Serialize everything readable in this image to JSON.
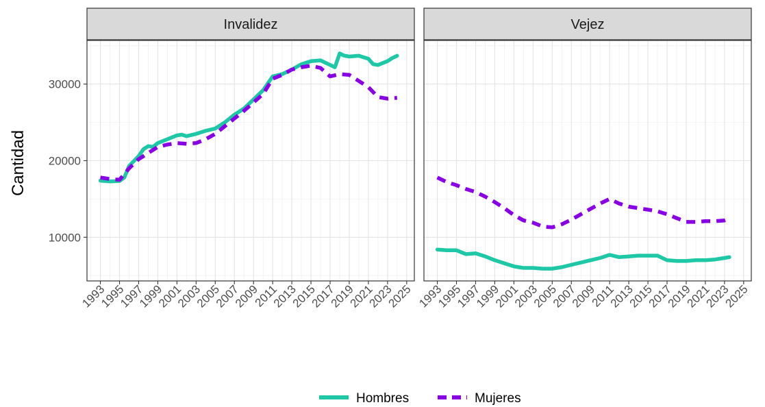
{
  "chart_data": {
    "type": "line",
    "ylabel": "Cantidad",
    "xlabel": "",
    "title": "",
    "ylim": [
      4300,
      35700
    ],
    "xlim": [
      1991.6,
      2025.8
    ],
    "y_ticks": [
      10000,
      20000,
      30000
    ],
    "y_tick_labels": [
      "10000",
      "20000",
      "30000"
    ],
    "x_ticks": [
      1993,
      1995,
      1997,
      1999,
      2001,
      2003,
      2005,
      2007,
      2009,
      2011,
      2013,
      2015,
      2017,
      2019,
      2021,
      2023,
      2025
    ],
    "x_tick_labels": [
      "1993",
      "1995",
      "1997",
      "1999",
      "2001",
      "2003",
      "2005",
      "2007",
      "2009",
      "2011",
      "2013",
      "2015",
      "2017",
      "2019",
      "2021",
      "2023",
      "2025"
    ],
    "grid": true,
    "legend_position": "bottom",
    "legend": [
      "Hombres",
      "Mujeres"
    ],
    "colors": {
      "Hombres": "#1ec8a6",
      "Mujeres": "#8a00e6"
    },
    "line_styles": {
      "Hombres": "solid",
      "Mujeres": "dashed"
    },
    "panels": [
      {
        "label": "Invalidez",
        "series": [
          {
            "name": "Hombres",
            "points": [
              [
                1993,
                17400
              ],
              [
                1994,
                17300
              ],
              [
                1995,
                17350
              ],
              [
                1995.5,
                17800
              ],
              [
                1996,
                19300
              ],
              [
                1997,
                20600
              ],
              [
                1997.5,
                21500
              ],
              [
                1998,
                21900
              ],
              [
                1998.5,
                21800
              ],
              [
                1999,
                22300
              ],
              [
                2000,
                22800
              ],
              [
                2001,
                23300
              ],
              [
                2001.5,
                23400
              ],
              [
                2002,
                23200
              ],
              [
                2003,
                23500
              ],
              [
                2004,
                23900
              ],
              [
                2005,
                24200
              ],
              [
                2006,
                25000
              ],
              [
                2007,
                26000
              ],
              [
                2008,
                26800
              ],
              [
                2009,
                28000
              ],
              [
                2010,
                29200
              ],
              [
                2011,
                31000
              ],
              [
                2012,
                31300
              ],
              [
                2013,
                31900
              ],
              [
                2014,
                32600
              ],
              [
                2015,
                33000
              ],
              [
                2016,
                33100
              ],
              [
                2017,
                32500
              ],
              [
                2017.5,
                32200
              ],
              [
                2018,
                34000
              ],
              [
                2018.5,
                33700
              ],
              [
                2019,
                33600
              ],
              [
                2020,
                33700
              ],
              [
                2020.5,
                33500
              ],
              [
                2021,
                33300
              ],
              [
                2021.5,
                32600
              ],
              [
                2022,
                32500
              ],
              [
                2023,
                33000
              ],
              [
                2023.5,
                33400
              ],
              [
                2024,
                33700
              ]
            ]
          },
          {
            "name": "Mujeres",
            "points": [
              [
                1993,
                17800
              ],
              [
                1994,
                17600
              ],
              [
                1995,
                17500
              ],
              [
                1996,
                19000
              ],
              [
                1997,
                20200
              ],
              [
                1998,
                21000
              ],
              [
                1999,
                21800
              ],
              [
                2000,
                22100
              ],
              [
                2001,
                22300
              ],
              [
                2002,
                22200
              ],
              [
                2003,
                22300
              ],
              [
                2004,
                22800
              ],
              [
                2005,
                23500
              ],
              [
                2006,
                24500
              ],
              [
                2007,
                25500
              ],
              [
                2008,
                26500
              ],
              [
                2009,
                27600
              ],
              [
                2010,
                28700
              ],
              [
                2011,
                30700
              ],
              [
                2012,
                31200
              ],
              [
                2013,
                31900
              ],
              [
                2014,
                32200
              ],
              [
                2015,
                32400
              ],
              [
                2016,
                32100
              ],
              [
                2017,
                31000
              ],
              [
                2018,
                31300
              ],
              [
                2019,
                31200
              ],
              [
                2020,
                30400
              ],
              [
                2021,
                29600
              ],
              [
                2022,
                28300
              ],
              [
                2023,
                28100
              ],
              [
                2024,
                28200
              ]
            ]
          }
        ]
      },
      {
        "label": "Vejez",
        "series": [
          {
            "name": "Hombres",
            "points": [
              [
                1993,
                8400
              ],
              [
                1994,
                8300
              ],
              [
                1995,
                8300
              ],
              [
                1996,
                7800
              ],
              [
                1997,
                7900
              ],
              [
                1998,
                7500
              ],
              [
                1999,
                7000
              ],
              [
                2000,
                6600
              ],
              [
                2001,
                6200
              ],
              [
                2002,
                6000
              ],
              [
                2003,
                6000
              ],
              [
                2004,
                5900
              ],
              [
                2005,
                5900
              ],
              [
                2006,
                6100
              ],
              [
                2007,
                6400
              ],
              [
                2008,
                6700
              ],
              [
                2009,
                7000
              ],
              [
                2010,
                7300
              ],
              [
                2011,
                7700
              ],
              [
                2012,
                7400
              ],
              [
                2013,
                7500
              ],
              [
                2014,
                7600
              ],
              [
                2015,
                7600
              ],
              [
                2016,
                7600
              ],
              [
                2017,
                7000
              ],
              [
                2018,
                6900
              ],
              [
                2019,
                6900
              ],
              [
                2020,
                7000
              ],
              [
                2021,
                7000
              ],
              [
                2022,
                7100
              ],
              [
                2023,
                7300
              ],
              [
                2023.5,
                7400
              ]
            ]
          },
          {
            "name": "Mujeres",
            "points": [
              [
                1993,
                17800
              ],
              [
                1994,
                17200
              ],
              [
                1995,
                16800
              ],
              [
                1996,
                16300
              ],
              [
                1997,
                15900
              ],
              [
                1998,
                15300
              ],
              [
                1999,
                14600
              ],
              [
                2000,
                13800
              ],
              [
                2001,
                12900
              ],
              [
                2002,
                12200
              ],
              [
                2003,
                11900
              ],
              [
                2004,
                11400
              ],
              [
                2005,
                11300
              ],
              [
                2006,
                11700
              ],
              [
                2007,
                12300
              ],
              [
                2008,
                13000
              ],
              [
                2009,
                13700
              ],
              [
                2010,
                14400
              ],
              [
                2011,
                15000
              ],
              [
                2012,
                14400
              ],
              [
                2013,
                14000
              ],
              [
                2014,
                13800
              ],
              [
                2015,
                13600
              ],
              [
                2016,
                13400
              ],
              [
                2017,
                13000
              ],
              [
                2018,
                12500
              ],
              [
                2019,
                12000
              ],
              [
                2020,
                12000
              ],
              [
                2021,
                12100
              ],
              [
                2022,
                12100
              ],
              [
                2023,
                12200
              ],
              [
                2023.5,
                12400
              ]
            ]
          }
        ]
      }
    ]
  }
}
